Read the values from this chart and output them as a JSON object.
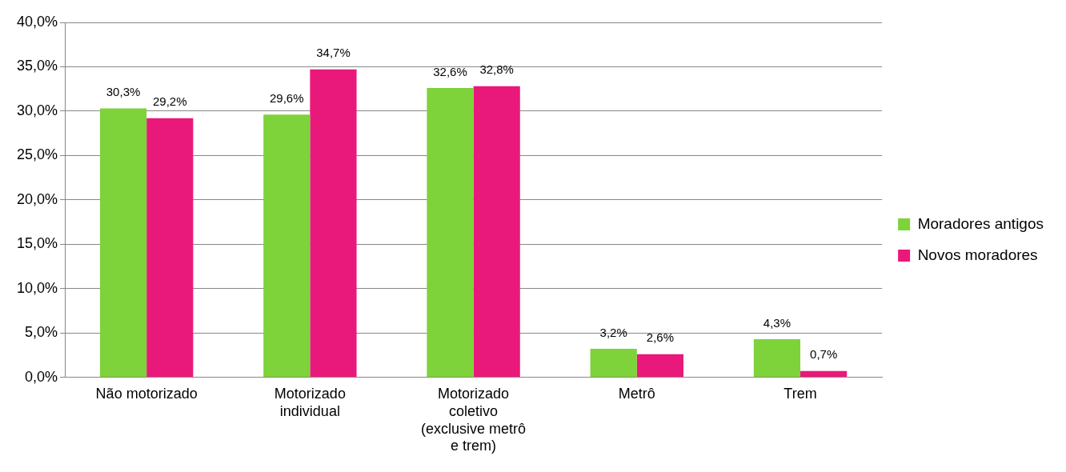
{
  "chart_data": {
    "type": "bar",
    "categories": [
      "Não motorizado",
      "Motorizado individual",
      "Motorizado coletivo (exclusive metrô e trem)",
      "Metrô",
      "Trem"
    ],
    "series": [
      {
        "name": "Moradores antigos",
        "color": "#7ed23a",
        "values": [
          30.3,
          29.6,
          32.6,
          3.2,
          4.3
        ],
        "value_labels": [
          "30,3%",
          "29,6%",
          "32,6%",
          "3,2%",
          "4,3%"
        ]
      },
      {
        "name": "Novos moradores",
        "color": "#e8197a",
        "values": [
          29.2,
          34.7,
          32.8,
          2.6,
          0.7
        ],
        "value_labels": [
          "29,2%",
          "34,7%",
          "32,8%",
          "2,6%",
          "0,7%"
        ]
      }
    ],
    "ylim": [
      0,
      40
    ],
    "yticks": [
      {
        "value": 0,
        "label": "0,0%"
      },
      {
        "value": 5,
        "label": "5,0%"
      },
      {
        "value": 10,
        "label": "10,0%"
      },
      {
        "value": 15,
        "label": "15,0%"
      },
      {
        "value": 20,
        "label": "20,0%"
      },
      {
        "value": 25,
        "label": "25,0%"
      },
      {
        "value": 30,
        "label": "30,0%"
      },
      {
        "value": 35,
        "label": "35,0%"
      },
      {
        "value": 40,
        "label": "40,0%"
      }
    ],
    "grid": "y",
    "legend": "right"
  }
}
